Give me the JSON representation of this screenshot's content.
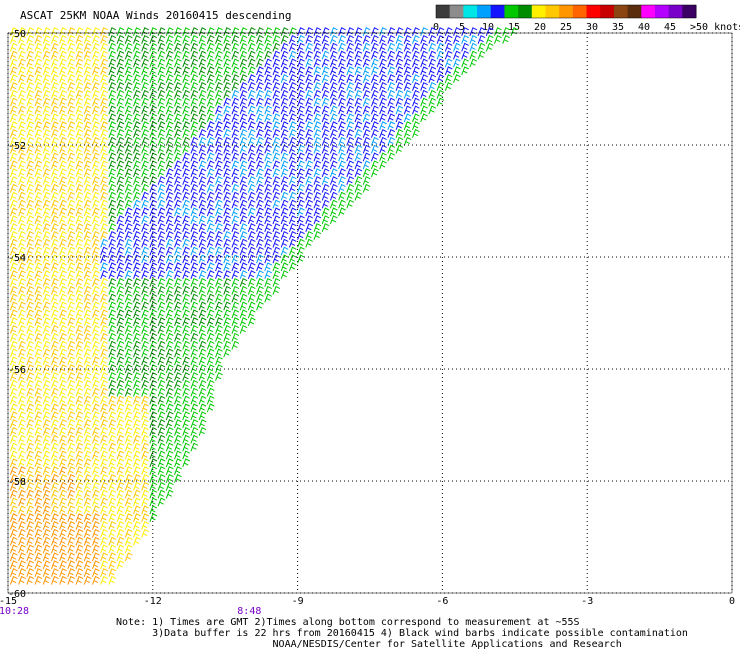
{
  "header": {
    "title": "ASCAT 25KM NOAA Winds 20160415 descending"
  },
  "legend": {
    "ticks": [
      "0",
      "5",
      "10",
      "15",
      "20",
      "25",
      "30",
      "35",
      "40",
      "45",
      ">50 knots"
    ],
    "colors": [
      "#3c3c3c",
      "#8c8c8c",
      "#00e6e6",
      "#00a0ff",
      "#1414ff",
      "#00c800",
      "#008c00",
      "#fff000",
      "#ffc800",
      "#ff9600",
      "#ff6400",
      "#ff0000",
      "#c80000",
      "#8b4513",
      "#5a2d0c",
      "#ff00ff",
      "#b400ff",
      "#7800c8",
      "#3c0064"
    ]
  },
  "map": {
    "lon_labels": [
      "-15",
      "-12",
      "-9",
      "-6",
      "-3",
      "0"
    ],
    "lat_labels": [
      "-50",
      "-52",
      "-54",
      "-56",
      "-58",
      "-60"
    ],
    "lon_range": [
      -15,
      0
    ],
    "lat_range": [
      -60,
      -50
    ],
    "grid": "dotted",
    "times": [
      {
        "label": "10:28",
        "lon": -15,
        "color": "#7800c8"
      },
      {
        "label": "8:48",
        "lon": -10,
        "color": "#7800c8"
      }
    ]
  },
  "notes": {
    "line1": "Note: 1) Times are GMT 2)Times along bottom correspond to measurement at ~55S",
    "line2": "      3)Data buffer is 22 hrs from 20160415 4) Black wind barbs indicate possible contamination",
    "line3": "                          NOAA/NESDIS/Center for Satellite Applications and Research"
  }
}
